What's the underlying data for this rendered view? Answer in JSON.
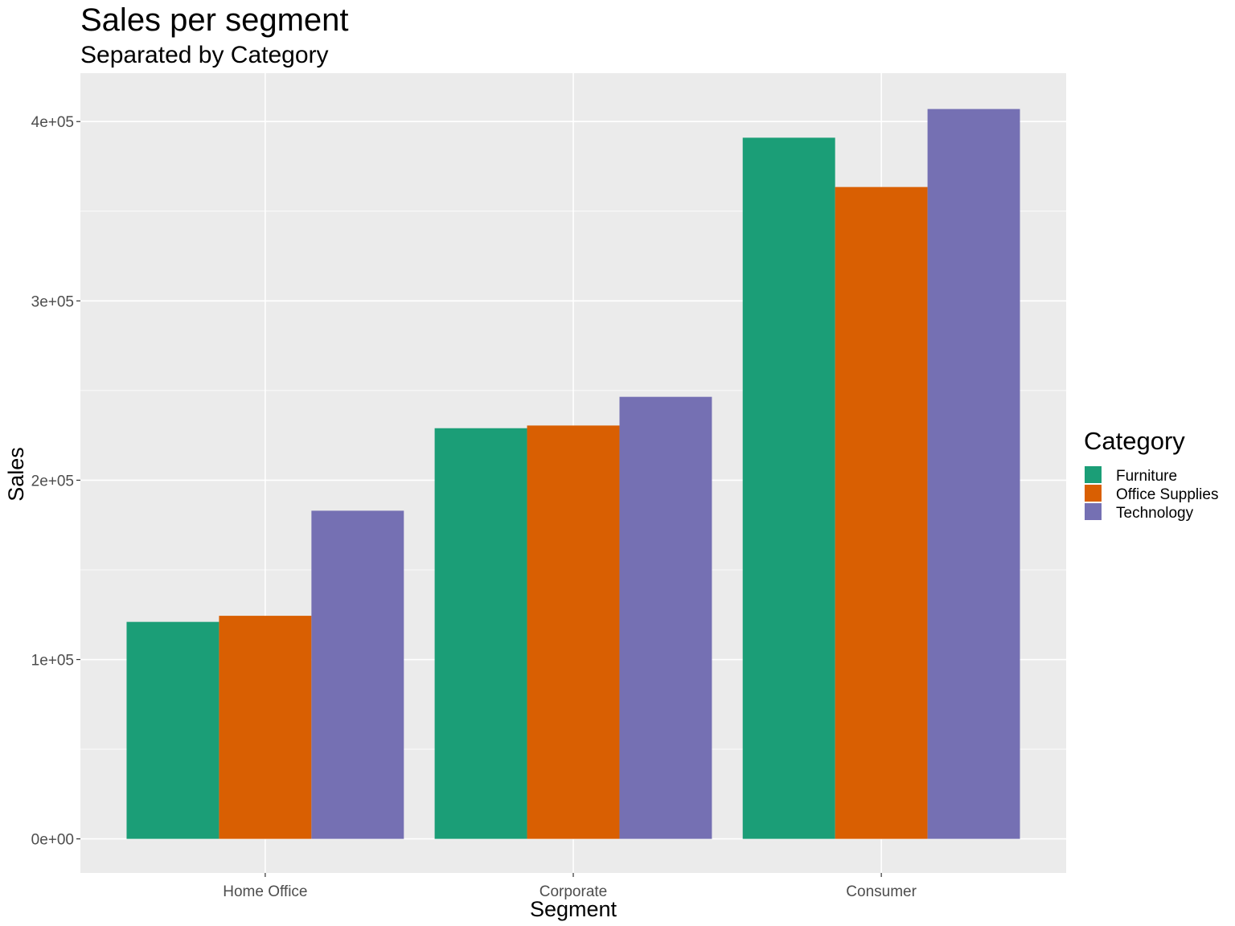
{
  "chart_data": {
    "type": "bar",
    "title": "Sales per segment",
    "subtitle": "Separated by Category",
    "xlabel": "Segment",
    "ylabel": "Sales",
    "categories": [
      "Home Office",
      "Corporate",
      "Consumer"
    ],
    "series": [
      {
        "name": "Furniture",
        "color": "#1b9e77",
        "values": [
          121000,
          229000,
          391000
        ]
      },
      {
        "name": "Office Supplies",
        "color": "#d95f02",
        "values": [
          124400,
          230500,
          363500
        ]
      },
      {
        "name": "Technology",
        "color": "#7570b3",
        "values": [
          183000,
          246500,
          407000
        ]
      }
    ],
    "yticks": [
      0,
      100000,
      200000,
      300000,
      400000
    ],
    "ytick_labels": [
      "0e+00",
      "1e+05",
      "2e+05",
      "3e+05",
      "4e+05"
    ],
    "ylim": [
      -19000,
      427000
    ],
    "grid": true,
    "legend": {
      "title": "Category",
      "position": "right"
    },
    "panel_background": "#ebebeb"
  }
}
